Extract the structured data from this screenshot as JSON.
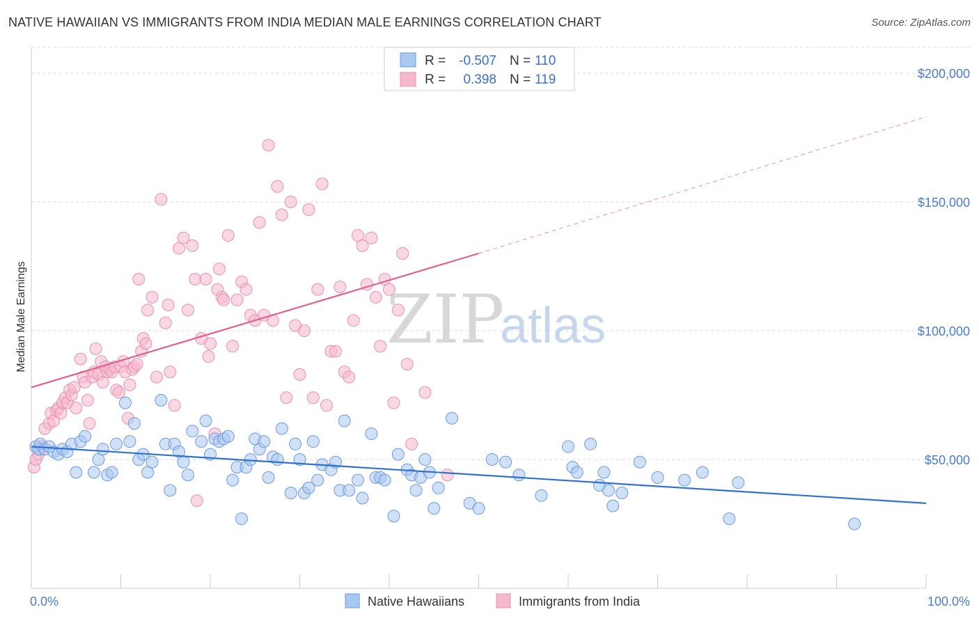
{
  "title": "NATIVE HAWAIIAN VS IMMIGRANTS FROM INDIA MEDIAN MALE EARNINGS CORRELATION CHART",
  "source": "Source: ZipAtlas.com",
  "watermark": {
    "zip": "ZIP",
    "atlas": "atlas"
  },
  "legend": {
    "row1": {
      "r_label": "R =",
      "r_value": "-0.507",
      "n_label": "N =",
      "n_value": "110"
    },
    "row2": {
      "r_label": "R =",
      "r_value": "0.398",
      "n_label": "N =",
      "n_value": "119"
    }
  },
  "colors": {
    "blue_fill": "#a9c8f0",
    "blue_stroke": "#6a9ae0",
    "blue_line": "#2f6fd0",
    "pink_fill": "#f5b8cc",
    "pink_stroke": "#e890ae",
    "pink_line": "#e0608a",
    "grid": "#d8d8d8"
  },
  "chart_data": {
    "type": "scatter",
    "title": "NATIVE HAWAIIAN VS IMMIGRANTS FROM INDIA MEDIAN MALE EARNINGS CORRELATION CHART",
    "xlabel": "",
    "ylabel": "Median Male Earnings",
    "xlim": [
      0,
      100
    ],
    "ylim": [
      0,
      210000
    ],
    "x_tick_labels": [
      "0.0%",
      "100.0%"
    ],
    "y_ticks": [
      50000,
      100000,
      150000,
      200000
    ],
    "y_tick_labels": [
      "$50,000",
      "$100,000",
      "$150,000",
      "$200,000"
    ],
    "grid": "horizontal dashed",
    "legend_position": "top-center",
    "series": [
      {
        "name": "Native Hawaiians",
        "color": "#a9c8f0",
        "r": -0.507,
        "n": 110,
        "trend": {
          "x": [
            0,
            100
          ],
          "y": [
            55000,
            33000
          ],
          "dashed_from": null
        },
        "points": [
          [
            0.5,
            55000
          ],
          [
            0.8,
            54000
          ],
          [
            1.0,
            56000
          ],
          [
            1.5,
            54000
          ],
          [
            2.0,
            55000
          ],
          [
            2.5,
            53000
          ],
          [
            3.0,
            52000
          ],
          [
            3.5,
            54000
          ],
          [
            4.0,
            53000
          ],
          [
            4.5,
            56000
          ],
          [
            5.0,
            45000
          ],
          [
            5.5,
            57000
          ],
          [
            6.0,
            59000
          ],
          [
            7.0,
            45000
          ],
          [
            7.5,
            50000
          ],
          [
            8.0,
            54000
          ],
          [
            8.5,
            44000
          ],
          [
            9.0,
            45000
          ],
          [
            9.5,
            56000
          ],
          [
            10.5,
            72000
          ],
          [
            11.0,
            57000
          ],
          [
            11.5,
            64000
          ],
          [
            12.0,
            50000
          ],
          [
            12.5,
            52000
          ],
          [
            13.0,
            45000
          ],
          [
            13.5,
            49000
          ],
          [
            14.5,
            73000
          ],
          [
            15.0,
            56000
          ],
          [
            15.5,
            38000
          ],
          [
            16.0,
            56000
          ],
          [
            16.5,
            53000
          ],
          [
            17.0,
            49000
          ],
          [
            17.5,
            44000
          ],
          [
            18.0,
            61000
          ],
          [
            19.0,
            57000
          ],
          [
            19.5,
            65000
          ],
          [
            20.0,
            52000
          ],
          [
            20.5,
            58000
          ],
          [
            21.0,
            57000
          ],
          [
            21.5,
            58000
          ],
          [
            22.0,
            59000
          ],
          [
            22.5,
            42000
          ],
          [
            23.0,
            47000
          ],
          [
            23.5,
            27000
          ],
          [
            24.0,
            47000
          ],
          [
            24.5,
            50000
          ],
          [
            25.0,
            58000
          ],
          [
            25.5,
            54000
          ],
          [
            26.0,
            57000
          ],
          [
            26.5,
            43000
          ],
          [
            27.0,
            51000
          ],
          [
            27.5,
            50000
          ],
          [
            28.0,
            62000
          ],
          [
            29.0,
            37000
          ],
          [
            29.5,
            56000
          ],
          [
            30.0,
            50000
          ],
          [
            30.5,
            37000
          ],
          [
            31.0,
            39000
          ],
          [
            31.5,
            57000
          ],
          [
            32.0,
            42000
          ],
          [
            32.5,
            48000
          ],
          [
            33.5,
            46000
          ],
          [
            34.0,
            49000
          ],
          [
            34.5,
            38000
          ],
          [
            35.0,
            65000
          ],
          [
            35.5,
            38000
          ],
          [
            36.5,
            42000
          ],
          [
            37.0,
            35000
          ],
          [
            38.0,
            60000
          ],
          [
            38.5,
            43000
          ],
          [
            39.0,
            43000
          ],
          [
            39.5,
            42000
          ],
          [
            40.5,
            28000
          ],
          [
            41.0,
            52000
          ],
          [
            42.0,
            46000
          ],
          [
            42.5,
            44000
          ],
          [
            43.0,
            38000
          ],
          [
            43.5,
            43000
          ],
          [
            44.0,
            50000
          ],
          [
            44.5,
            45000
          ],
          [
            45.0,
            31000
          ],
          [
            45.5,
            39000
          ],
          [
            47.0,
            66000
          ],
          [
            49.0,
            33000
          ],
          [
            50.0,
            31000
          ],
          [
            51.5,
            50000
          ],
          [
            53.0,
            49000
          ],
          [
            54.5,
            44000
          ],
          [
            57.0,
            36000
          ],
          [
            60.0,
            55000
          ],
          [
            60.5,
            47000
          ],
          [
            61.0,
            45000
          ],
          [
            62.5,
            56000
          ],
          [
            63.5,
            40000
          ],
          [
            64.0,
            45000
          ],
          [
            64.5,
            38000
          ],
          [
            65.0,
            32000
          ],
          [
            66.0,
            37000
          ],
          [
            68.0,
            49000
          ],
          [
            70.0,
            43000
          ],
          [
            73.0,
            42000
          ],
          [
            75.0,
            45000
          ],
          [
            78.0,
            27000
          ],
          [
            79.0,
            41000
          ],
          [
            92.0,
            25000
          ]
        ]
      },
      {
        "name": "Immigrants from India",
        "color": "#f5b8cc",
        "r": 0.398,
        "n": 119,
        "trend": {
          "x": [
            0,
            50
          ],
          "y": [
            78000,
            130000
          ],
          "dashed_to": [
            100,
            183000
          ]
        },
        "points": [
          [
            0.3,
            47000
          ],
          [
            0.5,
            50000
          ],
          [
            0.8,
            52000
          ],
          [
            1.0,
            54000
          ],
          [
            1.2,
            55000
          ],
          [
            1.5,
            62000
          ],
          [
            2.0,
            64000
          ],
          [
            2.2,
            68000
          ],
          [
            2.5,
            65000
          ],
          [
            2.8,
            69000
          ],
          [
            3.0,
            70000
          ],
          [
            3.3,
            68000
          ],
          [
            3.5,
            72000
          ],
          [
            3.8,
            74000
          ],
          [
            4.0,
            72000
          ],
          [
            4.3,
            77000
          ],
          [
            4.5,
            75000
          ],
          [
            4.8,
            78000
          ],
          [
            5.0,
            70000
          ],
          [
            5.5,
            89000
          ],
          [
            5.8,
            82000
          ],
          [
            6.0,
            80000
          ],
          [
            6.3,
            73000
          ],
          [
            6.5,
            64000
          ],
          [
            6.8,
            82000
          ],
          [
            7.0,
            84000
          ],
          [
            7.2,
            93000
          ],
          [
            7.5,
            83000
          ],
          [
            7.8,
            88000
          ],
          [
            8.0,
            80000
          ],
          [
            8.3,
            86000
          ],
          [
            8.5,
            84000
          ],
          [
            8.8,
            85000
          ],
          [
            9.0,
            84000
          ],
          [
            9.3,
            86000
          ],
          [
            9.5,
            77000
          ],
          [
            9.8,
            76000
          ],
          [
            10.0,
            86000
          ],
          [
            10.3,
            88000
          ],
          [
            10.5,
            84000
          ],
          [
            10.8,
            66000
          ],
          [
            11.0,
            79000
          ],
          [
            11.3,
            85000
          ],
          [
            11.5,
            86000
          ],
          [
            11.8,
            87000
          ],
          [
            12.0,
            120000
          ],
          [
            12.3,
            92000
          ],
          [
            12.5,
            97000
          ],
          [
            12.8,
            95000
          ],
          [
            13.0,
            108000
          ],
          [
            13.5,
            113000
          ],
          [
            14.0,
            82000
          ],
          [
            14.5,
            151000
          ],
          [
            15.0,
            103000
          ],
          [
            15.3,
            110000
          ],
          [
            15.5,
            84000
          ],
          [
            16.0,
            71000
          ],
          [
            16.5,
            132000
          ],
          [
            17.0,
            136000
          ],
          [
            17.5,
            108000
          ],
          [
            18.0,
            133000
          ],
          [
            18.3,
            120000
          ],
          [
            18.5,
            34000
          ],
          [
            19.0,
            97000
          ],
          [
            19.5,
            120000
          ],
          [
            19.8,
            90000
          ],
          [
            20.0,
            95000
          ],
          [
            20.5,
            60000
          ],
          [
            20.8,
            116000
          ],
          [
            21.0,
            124000
          ],
          [
            21.3,
            113000
          ],
          [
            21.5,
            112000
          ],
          [
            22.0,
            137000
          ],
          [
            22.5,
            94000
          ],
          [
            23.0,
            112000
          ],
          [
            23.5,
            119000
          ],
          [
            24.0,
            116000
          ],
          [
            24.5,
            106000
          ],
          [
            25.0,
            104000
          ],
          [
            25.5,
            142000
          ],
          [
            26.0,
            106000
          ],
          [
            26.5,
            172000
          ],
          [
            27.0,
            104000
          ],
          [
            27.5,
            156000
          ],
          [
            28.0,
            145000
          ],
          [
            28.5,
            74000
          ],
          [
            29.0,
            150000
          ],
          [
            29.5,
            102000
          ],
          [
            30.0,
            83000
          ],
          [
            30.5,
            100000
          ],
          [
            31.0,
            147000
          ],
          [
            31.5,
            74000
          ],
          [
            32.0,
            116000
          ],
          [
            32.5,
            157000
          ],
          [
            33.0,
            71000
          ],
          [
            33.5,
            92000
          ],
          [
            34.0,
            92000
          ],
          [
            34.5,
            117000
          ],
          [
            35.0,
            84000
          ],
          [
            35.5,
            82000
          ],
          [
            36.0,
            104000
          ],
          [
            36.5,
            137000
          ],
          [
            37.0,
            133000
          ],
          [
            37.5,
            118000
          ],
          [
            38.0,
            136000
          ],
          [
            38.5,
            113000
          ],
          [
            39.0,
            94000
          ],
          [
            39.5,
            120000
          ],
          [
            40.0,
            116000
          ],
          [
            40.5,
            72000
          ],
          [
            41.0,
            108000
          ],
          [
            41.5,
            130000
          ],
          [
            42.0,
            87000
          ],
          [
            42.5,
            56000
          ],
          [
            44.0,
            76000
          ],
          [
            46.5,
            44000
          ]
        ]
      }
    ]
  },
  "bottom_legend": {
    "item1": "Native Hawaiians",
    "item2": "Immigrants from India"
  }
}
